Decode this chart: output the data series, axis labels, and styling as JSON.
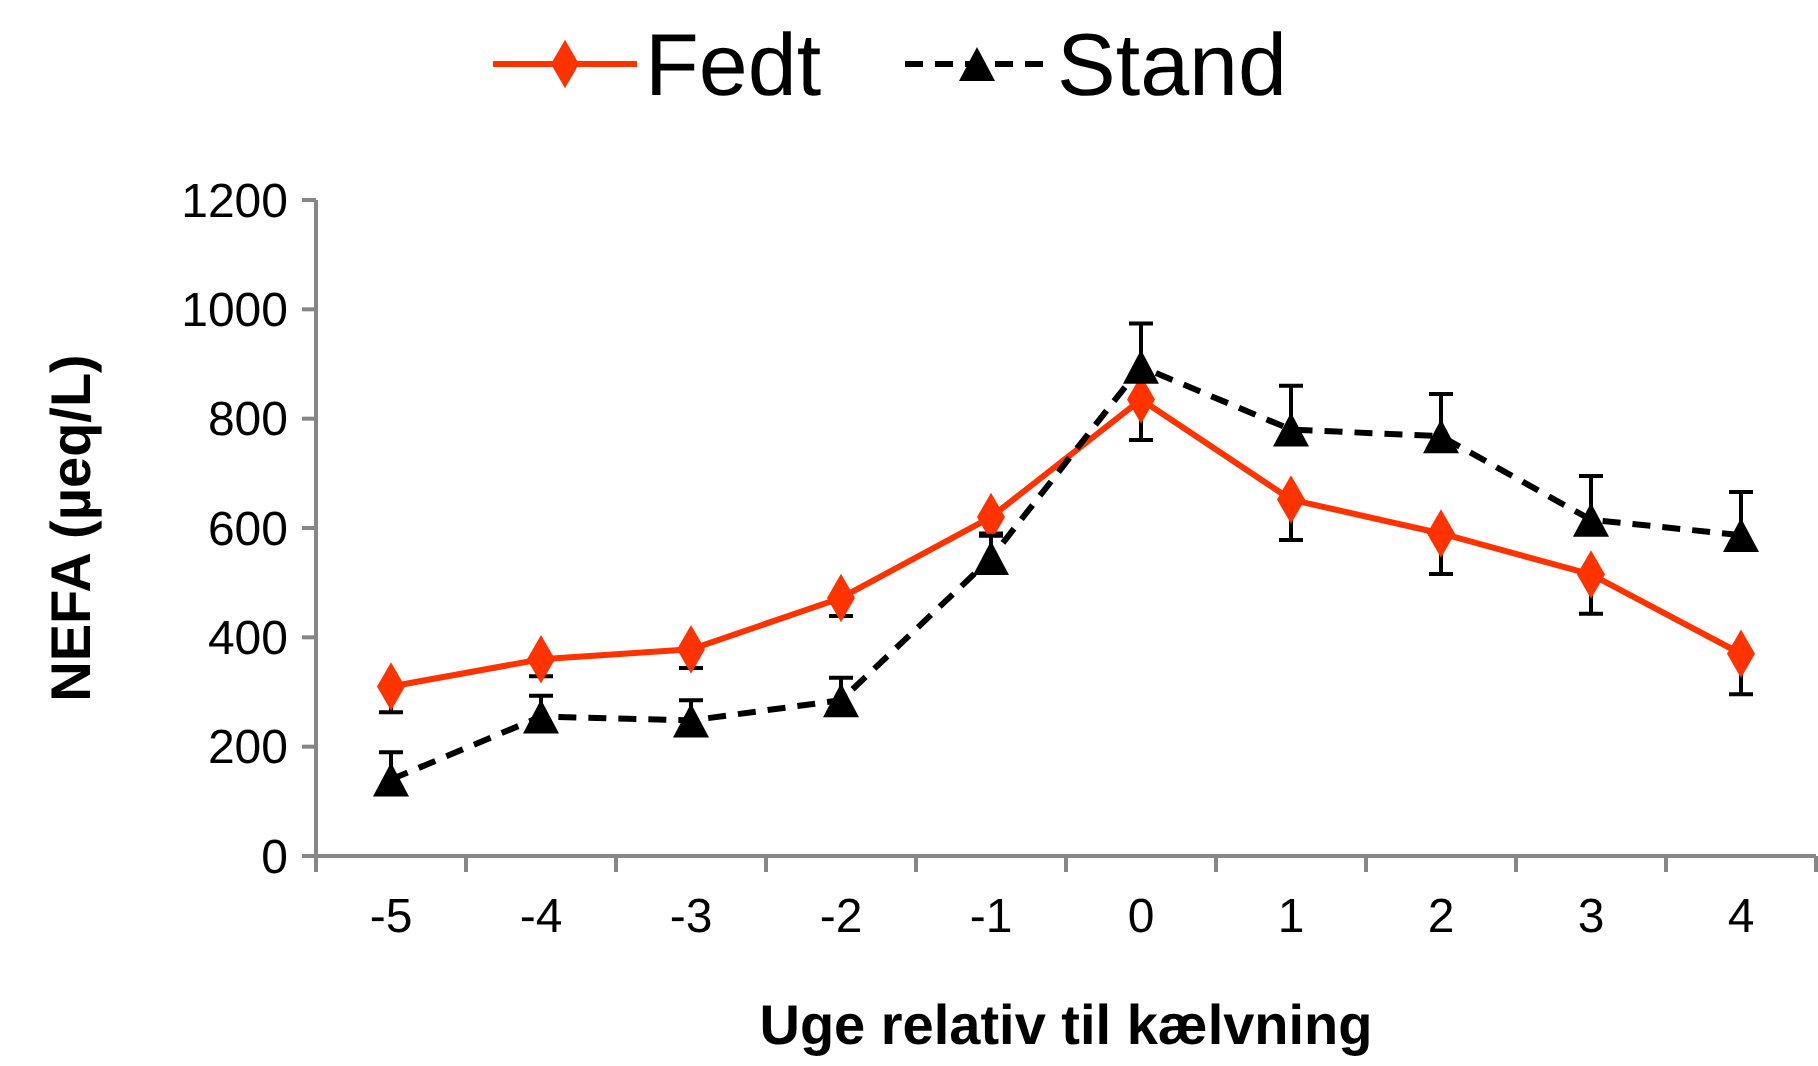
{
  "chart_data": {
    "type": "line",
    "xlabel": "Uge relativ til kælvning",
    "ylabel": "NEFA (µeq/L)",
    "categories": [
      "-5",
      "-4",
      "-3",
      "-2",
      "-1",
      "0",
      "1",
      "2",
      "3",
      "4"
    ],
    "series": [
      {
        "name": "Fedt",
        "color": "#ff3300",
        "marker": "diamond",
        "line_style": "solid",
        "values": [
          310,
          360,
          378,
          472,
          620,
          835,
          652,
          590,
          515,
          370
        ],
        "errors": [
          [
            263,
            310
          ],
          [
            329,
            360
          ],
          [
            344,
            378
          ],
          [
            439,
            472
          ],
          [
            590,
            620
          ],
          [
            761,
            835
          ],
          [
            578,
            652
          ],
          [
            516,
            590
          ],
          [
            443,
            515
          ],
          [
            296,
            370
          ]
        ]
      },
      {
        "name": "Stand",
        "color": "#000000",
        "marker": "triangle",
        "line_style": "dashed",
        "values": [
          140,
          255,
          248,
          285,
          545,
          895,
          780,
          768,
          615,
          587
        ],
        "errors": [
          [
            140,
            190
          ],
          [
            255,
            293
          ],
          [
            248,
            285
          ],
          [
            285,
            326
          ],
          [
            545,
            586
          ],
          [
            895,
            974
          ],
          [
            780,
            860
          ],
          [
            768,
            845
          ],
          [
            615,
            695
          ],
          [
            587,
            666
          ]
        ]
      }
    ],
    "ylim": [
      0,
      1200
    ],
    "yticks": [
      0,
      200,
      400,
      600,
      800,
      1000,
      1200
    ],
    "grid": false,
    "legend": "top"
  }
}
